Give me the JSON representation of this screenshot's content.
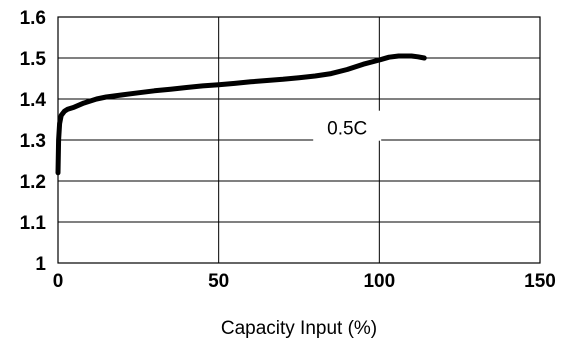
{
  "chart_data": {
    "type": "line",
    "title": "",
    "xlabel": "Capacity Input (%)",
    "ylabel": "",
    "xlim": [
      0,
      150
    ],
    "ylim": [
      1.0,
      1.6
    ],
    "xticks": [
      0,
      50,
      100,
      150
    ],
    "yticks": [
      1,
      1.1,
      1.2,
      1.3,
      1.4,
      1.5,
      1.6
    ],
    "xtick_labels": [
      "0",
      "50",
      "100",
      "150"
    ],
    "ytick_labels": [
      "1",
      "1.1",
      "1.2",
      "1.3",
      "1.4",
      "1.5",
      "1.6"
    ],
    "grid": true,
    "annotation": {
      "text": "0.5C",
      "x": 90,
      "y": 1.33
    },
    "series": [
      {
        "color": "#000000",
        "x": [
          0,
          0.2,
          0.5,
          1,
          2,
          3,
          5,
          8,
          12,
          15,
          20,
          25,
          30,
          35,
          40,
          45,
          50,
          55,
          60,
          65,
          70,
          75,
          80,
          85,
          90,
          95,
          100,
          103,
          106,
          108,
          110,
          112,
          114
        ],
        "y": [
          1.22,
          1.3,
          1.34,
          1.36,
          1.37,
          1.375,
          1.38,
          1.39,
          1.4,
          1.405,
          1.41,
          1.415,
          1.42,
          1.424,
          1.428,
          1.432,
          1.435,
          1.438,
          1.442,
          1.445,
          1.448,
          1.452,
          1.456,
          1.462,
          1.472,
          1.485,
          1.495,
          1.502,
          1.505,
          1.505,
          1.505,
          1.503,
          1.5
        ]
      }
    ]
  }
}
